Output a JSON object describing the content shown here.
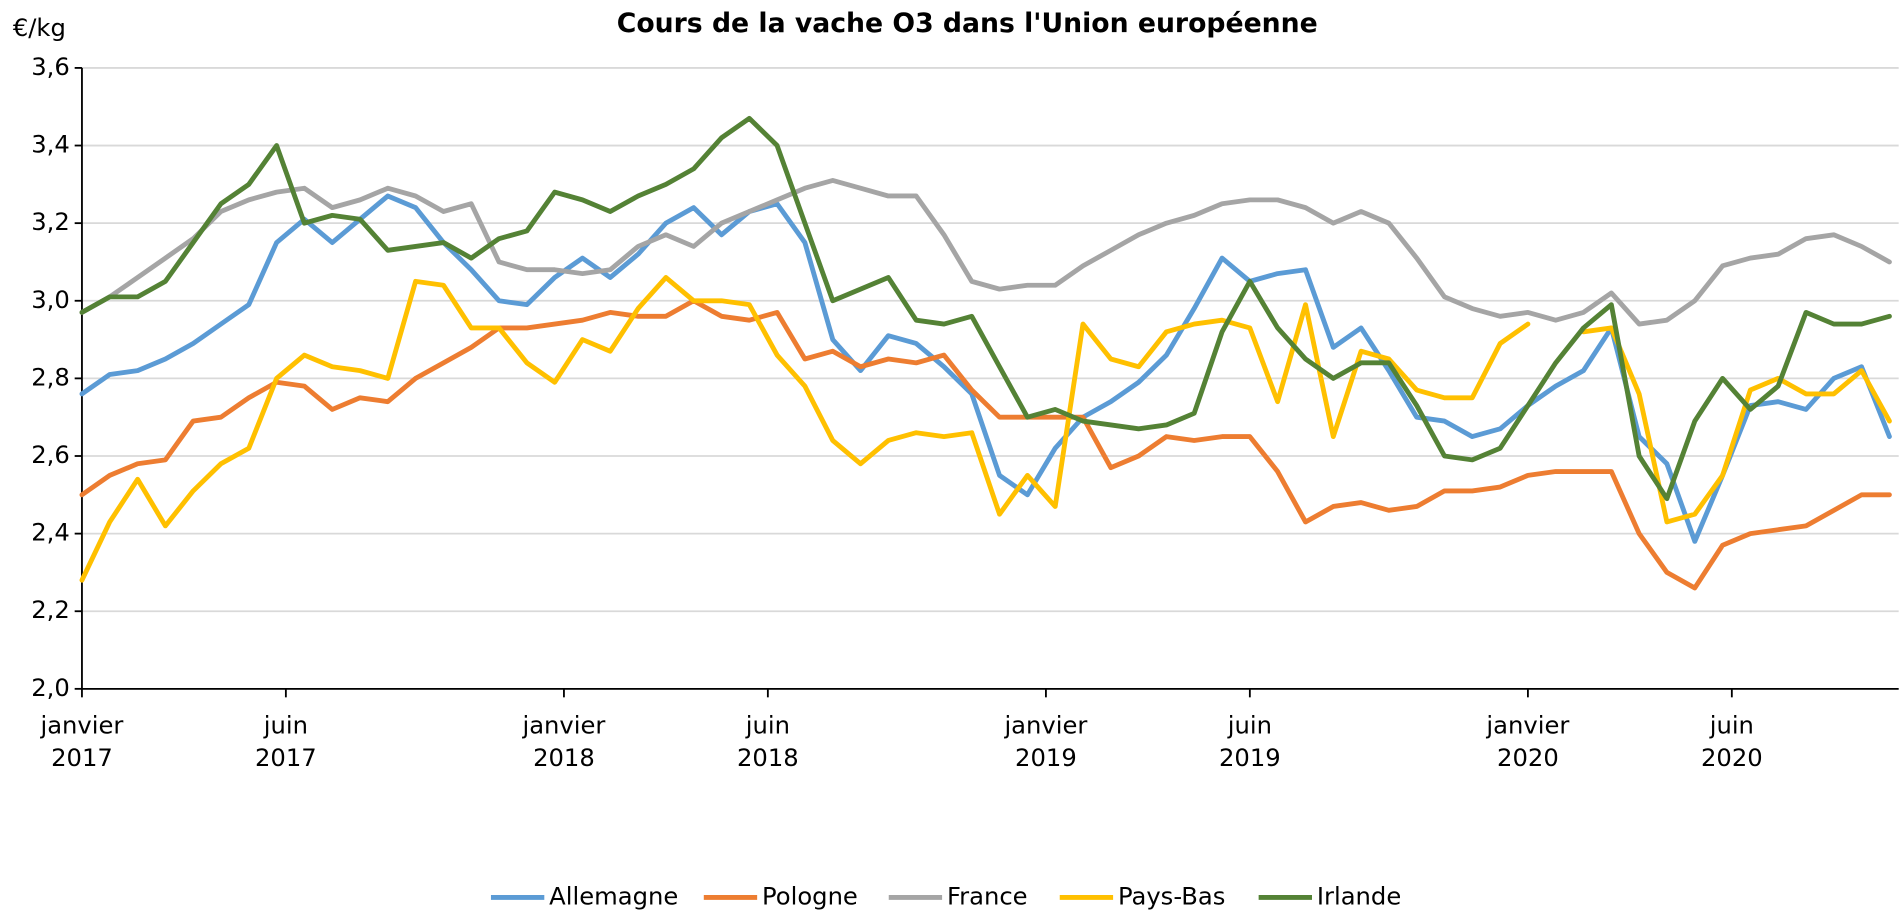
{
  "chart_data": {
    "type": "line",
    "title": "Cours de la vache O3 dans l'Union européenne",
    "y_label": "€/kg",
    "xlim": [
      0,
      196
    ],
    "xticks": [
      {
        "value": 0,
        "label": "janvier 2017"
      },
      {
        "value": 22,
        "label": "juin 2017"
      },
      {
        "value": 52,
        "label": "janvier 2018"
      },
      {
        "value": 74,
        "label": "juin 2018"
      },
      {
        "value": 104,
        "label": "janvier 2019"
      },
      {
        "value": 126,
        "label": "juin 2019"
      },
      {
        "value": 156,
        "label": "janvier 2020"
      },
      {
        "value": 178,
        "label": "juin 2020"
      }
    ],
    "ylim": [
      2.0,
      3.6
    ],
    "yticks": [
      {
        "value": 2.0,
        "label": "2,0"
      },
      {
        "value": 2.2,
        "label": "2,2"
      },
      {
        "value": 2.4,
        "label": "2,4"
      },
      {
        "value": 2.6,
        "label": "2,6"
      },
      {
        "value": 2.8,
        "label": "2,8"
      },
      {
        "value": 3.0,
        "label": "3,0"
      },
      {
        "value": 3.2,
        "label": "3,2"
      },
      {
        "value": 3.4,
        "label": "3,4"
      },
      {
        "value": 3.6,
        "label": "3,6"
      }
    ],
    "grid": true,
    "legend": "bottom",
    "x": [
      0,
      3,
      6,
      9,
      12,
      15,
      18,
      21,
      24,
      27,
      30,
      33,
      36,
      39,
      42,
      45,
      48,
      51,
      54,
      57,
      60,
      63,
      66,
      69,
      72,
      75,
      78,
      81,
      84,
      87,
      90,
      93,
      96,
      99,
      102,
      105,
      108,
      111,
      114,
      117,
      120,
      123,
      126,
      129,
      132,
      135,
      138,
      141,
      144,
      147,
      150,
      153,
      156,
      159,
      162,
      165,
      168,
      171,
      174,
      177,
      180,
      183,
      186,
      189,
      192,
      195
    ],
    "series": [
      {
        "name": "Allemagne",
        "color": "#5b9bd5",
        "values": [
          2.76,
          2.81,
          2.82,
          2.85,
          2.89,
          2.94,
          2.99,
          3.15,
          3.21,
          3.15,
          3.21,
          3.27,
          3.24,
          3.15,
          3.08,
          3.0,
          2.99,
          3.06,
          3.11,
          3.06,
          3.12,
          3.2,
          3.24,
          3.17,
          3.23,
          3.25,
          3.15,
          2.9,
          2.82,
          2.91,
          2.89,
          2.83,
          2.76,
          2.55,
          2.5,
          2.62,
          2.7,
          2.74,
          2.79,
          2.86,
          2.98,
          3.11,
          3.05,
          3.07,
          3.08,
          2.88,
          2.93,
          2.82,
          2.7,
          2.69,
          2.65,
          2.67,
          2.73,
          2.78,
          2.82,
          2.93,
          2.65,
          2.58,
          2.38,
          2.55,
          2.73,
          2.74,
          2.72,
          2.8,
          2.83,
          2.65
        ]
      },
      {
        "name": "Pologne",
        "color": "#ed7d31",
        "values": [
          2.5,
          2.55,
          2.58,
          2.59,
          2.69,
          2.7,
          2.75,
          2.79,
          2.78,
          2.72,
          2.75,
          2.74,
          2.8,
          2.84,
          2.88,
          2.93,
          2.93,
          2.94,
          2.95,
          2.97,
          2.96,
          2.96,
          3.0,
          2.96,
          2.95,
          2.97,
          2.85,
          2.87,
          2.83,
          2.85,
          2.84,
          2.86,
          2.77,
          2.7,
          2.7,
          2.7,
          2.7,
          2.57,
          2.6,
          2.65,
          2.64,
          2.65,
          2.65,
          2.56,
          2.43,
          2.47,
          2.48,
          2.46,
          2.47,
          2.51,
          2.51,
          2.52,
          2.55,
          2.56,
          2.56,
          2.56,
          2.4,
          2.3,
          2.26,
          2.37,
          2.4,
          2.41,
          2.42,
          2.46,
          2.5,
          2.5
        ]
      },
      {
        "name": "France",
        "color": "#a5a5a5",
        "values": [
          2.97,
          3.01,
          3.06,
          3.11,
          3.16,
          3.23,
          3.26,
          3.28,
          3.29,
          3.24,
          3.26,
          3.29,
          3.27,
          3.23,
          3.25,
          3.1,
          3.08,
          3.08,
          3.07,
          3.08,
          3.14,
          3.17,
          3.14,
          3.2,
          3.23,
          3.26,
          3.29,
          3.31,
          3.29,
          3.27,
          3.27,
          3.17,
          3.05,
          3.03,
          3.04,
          3.04,
          3.09,
          3.13,
          3.17,
          3.2,
          3.22,
          3.25,
          3.26,
          3.26,
          3.24,
          3.2,
          3.23,
          3.2,
          3.11,
          3.01,
          2.98,
          2.96,
          2.97,
          2.95,
          2.97,
          3.02,
          2.94,
          2.95,
          3.0,
          3.09,
          3.11,
          3.12,
          3.16,
          3.17,
          3.14,
          3.1
        ]
      },
      {
        "name": "Pays-Bas",
        "color": "#ffc000",
        "values": [
          2.28,
          2.43,
          2.54,
          2.42,
          2.51,
          2.58,
          2.62,
          2.8,
          2.86,
          2.83,
          2.82,
          2.8,
          3.05,
          3.04,
          2.93,
          2.93,
          2.84,
          2.79,
          2.9,
          2.87,
          2.98,
          3.06,
          3.0,
          3.0,
          2.99,
          2.86,
          2.78,
          2.64,
          2.58,
          2.64,
          2.66,
          2.65,
          2.66,
          2.45,
          2.55,
          2.47,
          2.94,
          2.85,
          2.83,
          2.92,
          2.94,
          2.95,
          2.93,
          2.74,
          2.99,
          2.65,
          2.87,
          2.85,
          2.77,
          2.75,
          2.75,
          2.89,
          2.94,
          null,
          2.92,
          2.93,
          2.76,
          2.43,
          2.45,
          2.55,
          2.77,
          2.8,
          2.76,
          2.76,
          2.82,
          2.69
        ]
      },
      {
        "name": "Irlande",
        "color": "#548235",
        "values": [
          2.97,
          3.01,
          3.01,
          3.05,
          3.15,
          3.25,
          3.3,
          3.4,
          3.2,
          3.22,
          3.21,
          3.13,
          3.14,
          3.15,
          3.11,
          3.16,
          3.18,
          3.28,
          3.26,
          3.23,
          3.27,
          3.3,
          3.34,
          3.42,
          3.47,
          3.4,
          3.2,
          3.0,
          3.03,
          3.06,
          2.95,
          2.94,
          2.96,
          2.83,
          2.7,
          2.72,
          2.69,
          2.68,
          2.67,
          2.68,
          2.71,
          2.92,
          3.05,
          2.93,
          2.85,
          2.8,
          2.84,
          2.84,
          2.73,
          2.6,
          2.59,
          2.62,
          2.73,
          2.84,
          2.93,
          2.99,
          2.6,
          2.49,
          2.69,
          2.8,
          2.72,
          2.78,
          2.97,
          2.94,
          2.94,
          2.96
        ]
      }
    ]
  }
}
